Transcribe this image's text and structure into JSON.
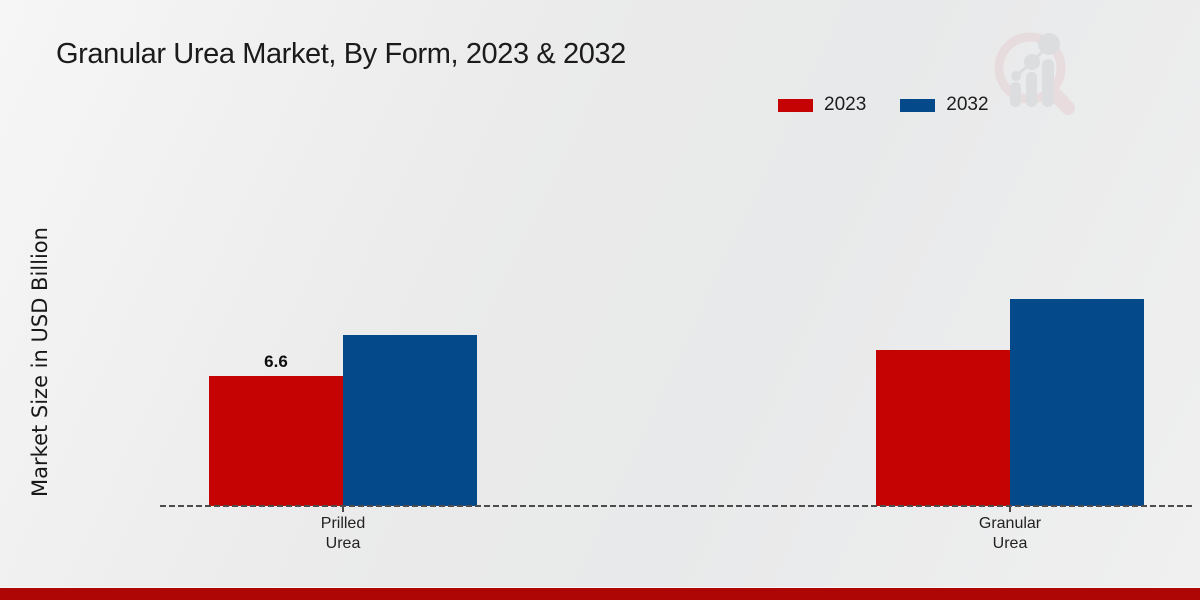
{
  "title": "Granular Urea Market, By Form, 2023 & 2032",
  "ylabel": "Market Size in USD Billion",
  "legend": {
    "items": [
      {
        "label": "2023",
        "color": "#c60303"
      },
      {
        "label": "2032",
        "color": "#04498a"
      }
    ]
  },
  "colors": {
    "bar_2023": "#c60303",
    "bar_2032": "#04498a",
    "bottom_strip": "#ae0505",
    "baseline": "#4c4c4c"
  },
  "chart_data": {
    "type": "bar",
    "categories": [
      "Prilled Urea",
      "Granular Urea"
    ],
    "series": [
      {
        "name": "2023",
        "color": "#c60303",
        "values": [
          6.6,
          7.9
        ]
      },
      {
        "name": "2032",
        "color": "#04498a",
        "values": [
          8.7,
          10.5
        ]
      }
    ],
    "value_labels": [
      {
        "series_index": 0,
        "category_index": 0,
        "text": "6.6"
      }
    ],
    "title": "Granular Urea Market, By Form, 2023 & 2032",
    "xlabel": "",
    "ylabel": "Market Size in USD Billion",
    "ylim": [
      0,
      11
    ],
    "grid": false,
    "legend_position": "top-right",
    "baseline_style": "dashed"
  },
  "watermark": {
    "name": "magnifier-bar-chart-logo"
  }
}
